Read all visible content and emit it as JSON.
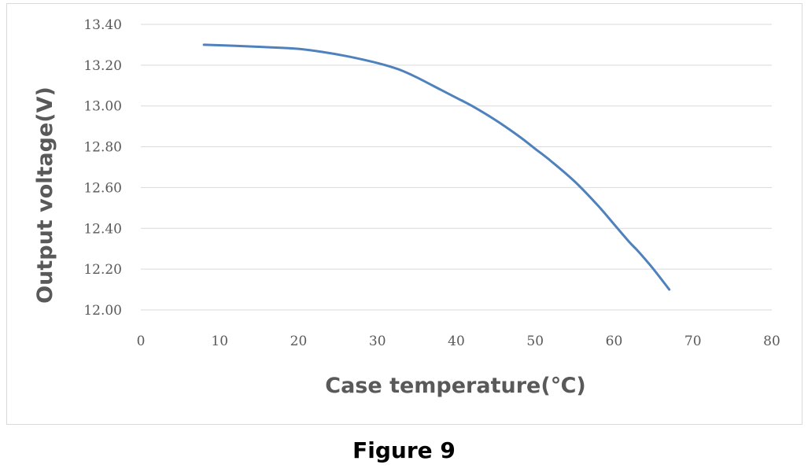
{
  "chart_data": {
    "type": "line",
    "title": "",
    "xlabel": "Case temperature(℃)",
    "ylabel": "Output voltage(V)",
    "xlim": [
      0,
      80
    ],
    "ylim": [
      12.0,
      13.4
    ],
    "xticks": [
      "0",
      "10",
      "20",
      "30",
      "40",
      "50",
      "60",
      "70",
      "80"
    ],
    "yticks": [
      "12.00",
      "12.20",
      "12.40",
      "12.60",
      "12.80",
      "13.00",
      "13.20",
      "13.40"
    ],
    "grid": "horizontal",
    "legend": "none",
    "series": [
      {
        "color": "#4f81bd",
        "x": [
          8,
          12,
          15,
          18,
          20,
          23,
          26,
          29,
          31,
          33,
          35,
          38,
          40,
          42,
          45,
          48,
          50,
          52,
          55,
          58,
          60,
          62,
          63,
          65,
          67
        ],
        "y": [
          13.3,
          13.295,
          13.29,
          13.285,
          13.28,
          13.265,
          13.245,
          13.22,
          13.2,
          13.175,
          13.14,
          13.08,
          13.04,
          13.0,
          12.93,
          12.85,
          12.79,
          12.73,
          12.63,
          12.51,
          12.42,
          12.33,
          12.29,
          12.2,
          12.1
        ]
      }
    ]
  },
  "caption": "Figure 9"
}
